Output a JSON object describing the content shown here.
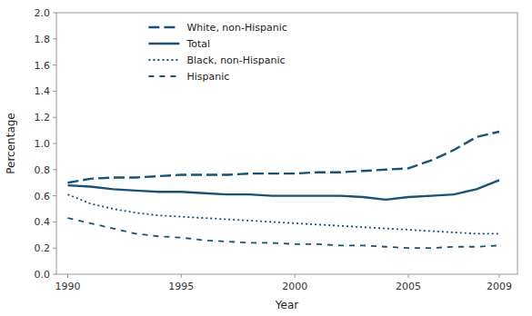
{
  "chart_data": {
    "type": "line",
    "xlabel": "Year",
    "ylabel": "Percentage",
    "x": [
      1990,
      1991,
      1992,
      1993,
      1994,
      1995,
      1996,
      1997,
      1998,
      1999,
      2000,
      2001,
      2002,
      2003,
      2004,
      2005,
      2006,
      2007,
      2008,
      2009
    ],
    "series": [
      {
        "name": "White, non-Hispanic",
        "color": "#1a5276",
        "line_style": "longdash",
        "values": [
          0.7,
          0.73,
          0.74,
          0.74,
          0.75,
          0.76,
          0.76,
          0.76,
          0.77,
          0.77,
          0.77,
          0.78,
          0.78,
          0.79,
          0.8,
          0.81,
          0.87,
          0.95,
          1.05,
          1.09
        ]
      },
      {
        "name": "Total",
        "color": "#1a5276",
        "line_style": "solid",
        "values": [
          0.68,
          0.67,
          0.65,
          0.64,
          0.63,
          0.63,
          0.62,
          0.61,
          0.61,
          0.6,
          0.6,
          0.6,
          0.6,
          0.59,
          0.57,
          0.59,
          0.6,
          0.61,
          0.65,
          0.72
        ]
      },
      {
        "name": "Black, non-Hispanic",
        "color": "#1a5276",
        "line_style": "dotted",
        "values": [
          0.61,
          0.54,
          0.5,
          0.47,
          0.45,
          0.44,
          0.43,
          0.42,
          0.41,
          0.4,
          0.39,
          0.38,
          0.37,
          0.36,
          0.35,
          0.34,
          0.33,
          0.32,
          0.31,
          0.31
        ]
      },
      {
        "name": "Hispanic",
        "color": "#1a5276",
        "line_style": "dashed",
        "values": [
          0.43,
          0.39,
          0.35,
          0.31,
          0.29,
          0.28,
          0.26,
          0.25,
          0.24,
          0.24,
          0.23,
          0.23,
          0.22,
          0.22,
          0.21,
          0.2,
          0.2,
          0.21,
          0.21,
          0.22
        ]
      }
    ],
    "xlim": [
      1989.5,
      2009.8
    ],
    "xticks": [
      1990,
      1995,
      2000,
      2005,
      2009
    ],
    "ylim": [
      0.0,
      2.0
    ],
    "yticks": [
      {
        "value": 0.0,
        "label": "0.0"
      },
      0.2,
      0.4,
      0.6,
      0.8,
      {
        "value": 1.0,
        "label": "1.0"
      },
      1.2,
      1.4,
      1.6,
      1.8,
      {
        "value": 2.0,
        "label": "2.0"
      }
    ],
    "grid": false,
    "legend": "upper-left"
  }
}
